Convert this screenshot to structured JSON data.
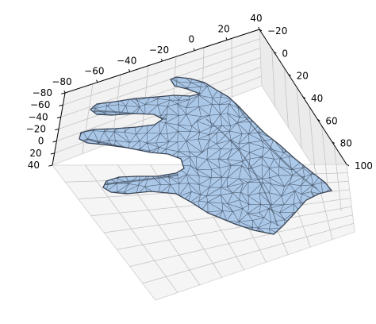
{
  "chart_data": {
    "type": "3d-mesh",
    "title": "",
    "xlabel": "",
    "ylabel": "",
    "zlabel": "",
    "grid": true,
    "axis_a": {
      "ticks": [
        -80,
        -60,
        -40,
        -20,
        0,
        20,
        40
      ]
    },
    "axis_b": {
      "ticks": [
        -20,
        0,
        20,
        40,
        60,
        80,
        100
      ]
    },
    "axis_c": {
      "ticks": [
        -80,
        -60,
        -40,
        -20,
        0,
        20,
        40
      ]
    },
    "mesh": {
      "subject": "hand",
      "face_color": "#9ebfe6",
      "edge_color": "#3b4656",
      "alpha": 0.85
    },
    "pane_color": "#f2f2f2",
    "grid_color": "#c4c4c4"
  }
}
